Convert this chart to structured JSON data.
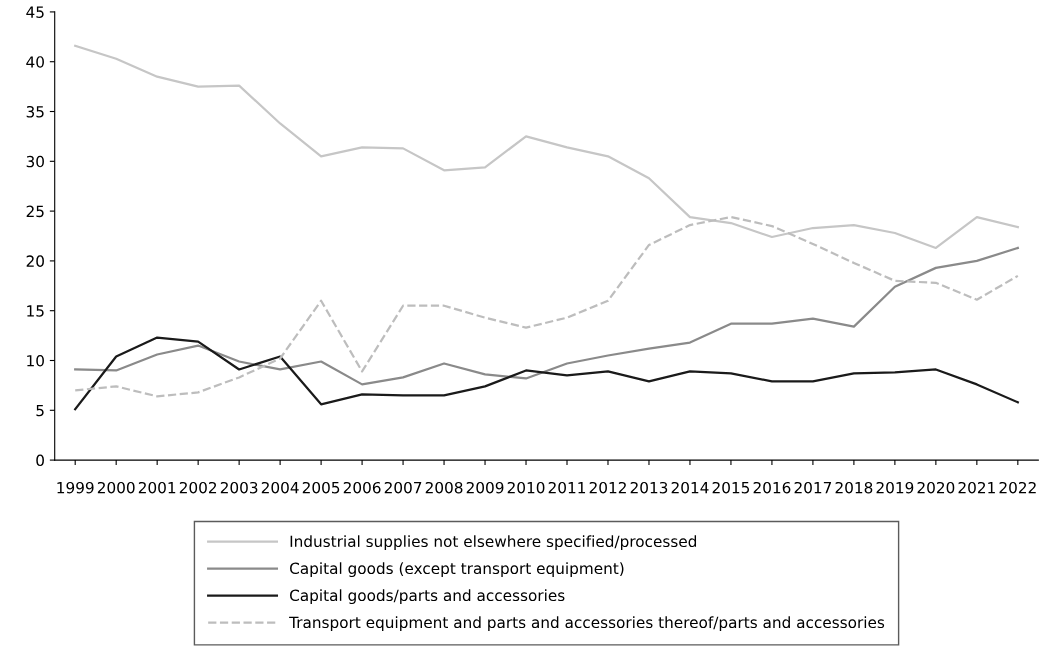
{
  "chart_data": {
    "type": "line",
    "categories": [
      "1999",
      "2000",
      "2001",
      "2002",
      "2003",
      "2004",
      "2005",
      "2006",
      "2007",
      "2008",
      "2009",
      "2010",
      "2011",
      "2012",
      "2013",
      "2014",
      "2015",
      "2016",
      "2017",
      "2018",
      "2019",
      "2020",
      "2021",
      "2022"
    ],
    "ylim": [
      0,
      45
    ],
    "yticks": [
      0,
      5,
      10,
      15,
      20,
      25,
      30,
      35,
      40,
      45
    ],
    "grid": false,
    "legend": "bottom",
    "marker": "none",
    "series": [
      {
        "name": "Industrial supplies not elsewhere specified/processed",
        "color": "#c6c6c6",
        "line_style": "solid",
        "values": [
          41.6,
          40.3,
          38.5,
          37.5,
          37.6,
          33.8,
          30.5,
          31.4,
          31.3,
          29.1,
          29.4,
          32.5,
          31.4,
          30.5,
          28.3,
          24.4,
          23.8,
          22.4,
          23.3,
          23.6,
          22.8,
          21.3,
          24.4,
          23.4
        ]
      },
      {
        "name": "Capital goods (except transport equipment)",
        "color": "#8a8a8a",
        "line_style": "solid",
        "values": [
          9.1,
          9.0,
          10.6,
          11.5,
          9.9,
          9.1,
          9.9,
          7.6,
          8.3,
          9.7,
          8.6,
          8.2,
          9.7,
          10.5,
          11.2,
          11.8,
          13.7,
          13.7,
          14.2,
          13.4,
          17.4,
          19.3,
          20.0,
          21.3
        ]
      },
      {
        "name": "Capital goods/parts and accessories",
        "color": "#1a1a1a",
        "line_style": "solid",
        "values": [
          5.1,
          10.4,
          12.3,
          11.9,
          9.1,
          10.4,
          5.6,
          6.6,
          6.5,
          6.5,
          7.4,
          9.0,
          8.5,
          8.9,
          7.9,
          8.9,
          8.7,
          7.9,
          7.9,
          8.7,
          8.8,
          9.1,
          7.6,
          5.8
        ]
      },
      {
        "name": "Transport equipment and parts and accessories thereof/parts and accessories",
        "color": "#bdbdbd",
        "line_style": "dashed",
        "values": [
          7.0,
          7.4,
          6.4,
          6.8,
          8.3,
          10.2,
          16.0,
          8.9,
          15.5,
          15.5,
          14.3,
          13.3,
          14.3,
          16.0,
          21.6,
          23.6,
          24.4,
          23.5,
          21.7,
          19.8,
          18.0,
          17.8,
          16.1,
          18.5
        ]
      }
    ]
  }
}
